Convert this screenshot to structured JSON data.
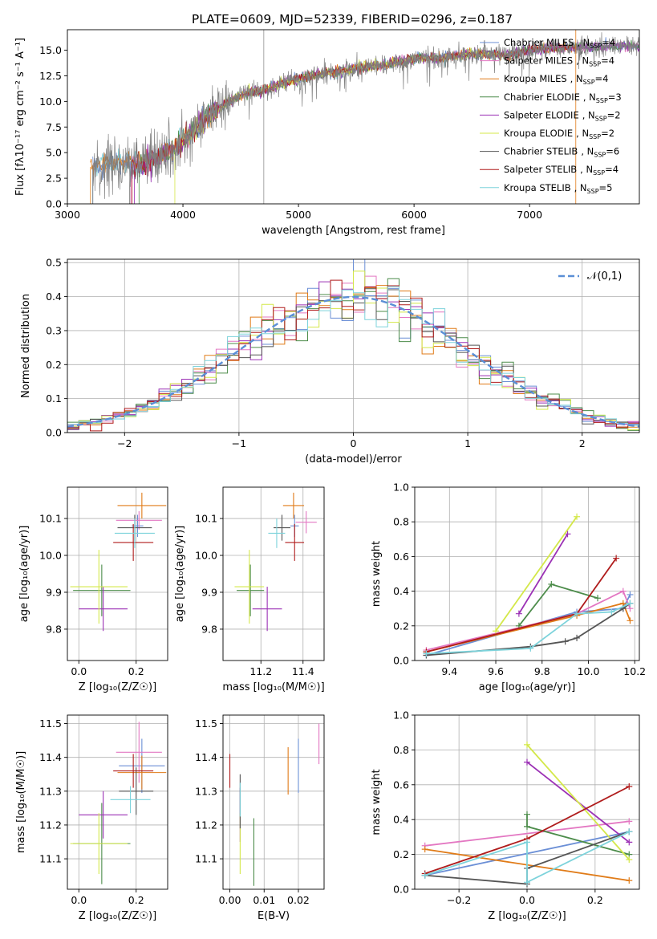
{
  "figure_title": "PLATE=0609, MJD=52339, FIBERID=0296, z=0.187",
  "colors": {
    "Chabrier MILES": "#6b8fd6",
    "Salpeter MILES": "#e377c2",
    "Kroupa MILES": "#e07b18",
    "Chabrier ELODIE": "#4c8c4a",
    "Salpeter ELODIE": "#9b30b5",
    "Kroupa ELODIE": "#d4e84a",
    "Chabrier STELIB": "#555555",
    "Salpeter STELIB": "#b01c1c",
    "Kroupa STELIB": "#7dd3db",
    "spectrum": "#808080",
    "normal": "#5b8fd6"
  },
  "chart_data": [
    {
      "id": "spectrum",
      "type": "line",
      "title": "PLATE=0609, MJD=52339, FIBERID=0296, z=0.187",
      "xlabel": "wavelength [Angstrom, rest frame]",
      "ylabel": "Flux [fλ10⁻¹⁷ erg cm⁻² s⁻¹ A⁻¹]",
      "xlim": [
        3000,
        7950
      ],
      "ylim": [
        0,
        17
      ],
      "xticks": [
        "3000",
        "4000",
        "5000",
        "6000",
        "7000"
      ],
      "yticks": [
        "0.0",
        "2.5",
        "5.0",
        "7.5",
        "10.0",
        "12.5",
        "15.0"
      ],
      "grid": false,
      "legend": "upper right",
      "data_x": [
        3220,
        3350,
        3500,
        3650,
        3800,
        3950,
        4100,
        4250,
        4400,
        4550,
        4700,
        4850,
        5000,
        5200,
        5400,
        5600,
        5800,
        6000,
        6200,
        6400,
        6600,
        6800,
        7000,
        7200,
        7400,
        7600,
        7800,
        7950
      ],
      "data_y": [
        3.6,
        3.9,
        4.0,
        3.7,
        4.8,
        5.5,
        7.2,
        8.8,
        10.0,
        10.8,
        11.0,
        11.8,
        12.2,
        12.7,
        13.0,
        13.4,
        13.7,
        14.2,
        14.2,
        14.5,
        14.7,
        14.5,
        15.0,
        15.2,
        15.3,
        15.3,
        15.4,
        15.4
      ],
      "series": [
        {
          "name": "Chabrier MILES",
          "nssp": "4"
        },
        {
          "name": "Salpeter MILES",
          "nssp": "4"
        },
        {
          "name": "Kroupa MILES",
          "nssp": "4"
        },
        {
          "name": "Chabrier ELODIE",
          "nssp": "3"
        },
        {
          "name": "Salpeter ELODIE",
          "nssp": "2"
        },
        {
          "name": "Kroupa ELODIE",
          "nssp": "2"
        },
        {
          "name": "Chabrier STELIB",
          "nssp": "6"
        },
        {
          "name": "Salpeter STELIB",
          "nssp": "4"
        },
        {
          "name": "Kroupa STELIB",
          "nssp": "5"
        }
      ]
    },
    {
      "id": "residuals",
      "type": "bar",
      "xlabel": "(data-model)/error",
      "ylabel": "Normed distribution",
      "xlim": [
        -2.5,
        2.5
      ],
      "ylim": [
        0,
        0.51
      ],
      "xticks": [
        "−2",
        "−1",
        "0",
        "1",
        "2"
      ],
      "yticks": [
        "0.0",
        "0.1",
        "0.2",
        "0.3",
        "0.4",
        "0.5"
      ],
      "grid": true,
      "legend_label": "𝒩(0,1)",
      "legend": "upper right",
      "bin_width": 0.1
    },
    {
      "id": "age-vs-z",
      "type": "scatter",
      "xlabel": "Z [log₁₀(Z/Z☉)]",
      "ylabel": "age [log₁₀(age/yr)]",
      "xlim": [
        -0.04,
        0.31
      ],
      "ylim": [
        9.715,
        10.185
      ],
      "xticks": [
        "0.0",
        "0.2"
      ],
      "yticks": [
        "9.8",
        "9.9",
        "10.0",
        "10.1"
      ],
      "grid": true,
      "points": [
        {
          "series": "Chabrier MILES",
          "x": 0.205,
          "y": 10.08,
          "xerr": 0.02,
          "yerr": 0.03
        },
        {
          "series": "Salpeter MILES",
          "x": 0.21,
          "y": 10.095,
          "xerr": 0.08,
          "yerr": 0.025
        },
        {
          "series": "Kroupa MILES",
          "x": 0.22,
          "y": 10.135,
          "xerr": 0.085,
          "yerr": 0.035
        },
        {
          "series": "Chabrier ELODIE",
          "x": 0.08,
          "y": 9.905,
          "xerr": 0.1,
          "yerr": 0.07
        },
        {
          "series": "Salpeter ELODIE",
          "x": 0.085,
          "y": 9.855,
          "xerr": 0.085,
          "yerr": 0.06
        },
        {
          "series": "Kroupa ELODIE",
          "x": 0.07,
          "y": 9.915,
          "xerr": 0.1,
          "yerr": 0.1
        },
        {
          "series": "Chabrier STELIB",
          "x": 0.195,
          "y": 10.075,
          "xerr": 0.06,
          "yerr": 0.035
        },
        {
          "series": "Salpeter STELIB",
          "x": 0.19,
          "y": 10.035,
          "xerr": 0.07,
          "yerr": 0.05
        },
        {
          "series": "Kroupa STELIB",
          "x": 0.195,
          "y": 10.06,
          "xerr": 0.07,
          "yerr": 0.04
        }
      ]
    },
    {
      "id": "age-vs-mass",
      "type": "scatter",
      "xlabel": "mass [log₁₀(M/M☉)]",
      "ylabel": "age [log₁₀(age/yr)]",
      "xlim": [
        11.02,
        11.5
      ],
      "ylim": [
        9.715,
        10.185
      ],
      "xticks": [
        "11.2",
        "11.4"
      ],
      "yticks": [
        "9.8",
        "9.9",
        "10.0",
        "10.1"
      ],
      "grid": true,
      "points": [
        {
          "series": "Chabrier MILES",
          "x": 11.36,
          "y": 10.08,
          "xerr": 0.02,
          "yerr": 0.03
        },
        {
          "series": "Salpeter MILES",
          "x": 11.415,
          "y": 10.09,
          "xerr": 0.05,
          "yerr": 0.03
        },
        {
          "series": "Kroupa MILES",
          "x": 11.355,
          "y": 10.135,
          "xerr": 0.05,
          "yerr": 0.035
        },
        {
          "series": "Chabrier ELODIE",
          "x": 11.15,
          "y": 9.905,
          "xerr": 0.065,
          "yerr": 0.07
        },
        {
          "series": "Salpeter ELODIE",
          "x": 11.23,
          "y": 9.855,
          "xerr": 0.07,
          "yerr": 0.06
        },
        {
          "series": "Kroupa ELODIE",
          "x": 11.145,
          "y": 9.915,
          "xerr": 0.07,
          "yerr": 0.1
        },
        {
          "series": "Chabrier STELIB",
          "x": 11.3,
          "y": 10.075,
          "xerr": 0.04,
          "yerr": 0.035
        },
        {
          "series": "Salpeter STELIB",
          "x": 11.36,
          "y": 10.035,
          "xerr": 0.045,
          "yerr": 0.05
        },
        {
          "series": "Kroupa STELIB",
          "x": 11.275,
          "y": 10.06,
          "xerr": 0.04,
          "yerr": 0.04
        }
      ]
    },
    {
      "id": "weight-vs-age",
      "type": "line",
      "xlabel": "age [log₁₀(age/yr)]",
      "ylabel": "mass weight",
      "xlim": [
        9.25,
        10.22
      ],
      "ylim": [
        0,
        1
      ],
      "xticks": [
        "9.4",
        "9.6",
        "9.8",
        "10.0",
        "10.2"
      ],
      "yticks": [
        "0.0",
        "0.2",
        "0.4",
        "0.6",
        "0.8",
        "1.0"
      ],
      "grid": true,
      "lines": [
        {
          "series": "Chabrier MILES",
          "x": [
            9.3,
            9.95,
            10.15,
            10.18
          ],
          "y": [
            0.03,
            0.28,
            0.3,
            0.38
          ]
        },
        {
          "series": "Salpeter MILES",
          "x": [
            9.3,
            9.95,
            10.15,
            10.18
          ],
          "y": [
            0.06,
            0.27,
            0.4,
            0.3
          ]
        },
        {
          "series": "Kroupa MILES",
          "x": [
            9.3,
            9.95,
            10.15,
            10.18
          ],
          "y": [
            0.05,
            0.26,
            0.33,
            0.23
          ]
        },
        {
          "series": "Chabrier ELODIE",
          "x": [
            9.7,
            9.84,
            10.04
          ],
          "y": [
            0.2,
            0.44,
            0.36
          ]
        },
        {
          "series": "Salpeter ELODIE",
          "x": [
            9.7,
            9.91
          ],
          "y": [
            0.27,
            0.73
          ]
        },
        {
          "series": "Kroupa ELODIE",
          "x": [
            9.6,
            9.95
          ],
          "y": [
            0.17,
            0.83
          ]
        },
        {
          "series": "Chabrier STELIB",
          "x": [
            9.3,
            9.75,
            9.9,
            9.95,
            10.15,
            10.18
          ],
          "y": [
            0.03,
            0.08,
            0.11,
            0.13,
            0.3,
            0.33
          ]
        },
        {
          "series": "Salpeter STELIB",
          "x": [
            9.3,
            9.95,
            10.12
          ],
          "y": [
            0.05,
            0.27,
            0.59
          ]
        },
        {
          "series": "Kroupa STELIB",
          "x": [
            9.3,
            9.75,
            9.95,
            10.1,
            10.18
          ],
          "y": [
            0.04,
            0.07,
            0.27,
            0.28,
            0.33
          ]
        }
      ]
    },
    {
      "id": "mass-vs-z",
      "type": "scatter",
      "xlabel": "Z [log₁₀(Z/Z☉)]",
      "ylabel": "mass [log₁₀(M/M☉)]",
      "xlim": [
        -0.04,
        0.31
      ],
      "ylim": [
        11.01,
        11.525
      ],
      "xticks": [
        "0.0",
        "0.2"
      ],
      "yticks": [
        "11.1",
        "11.2",
        "11.3",
        "11.4",
        "11.5"
      ],
      "grid": true,
      "points": [
        {
          "series": "Chabrier MILES",
          "x": 0.22,
          "y": 11.375,
          "xerr": 0.08,
          "yerr": 0.08
        },
        {
          "series": "Salpeter MILES",
          "x": 0.21,
          "y": 11.415,
          "xerr": 0.08,
          "yerr": 0.09
        },
        {
          "series": "Kroupa MILES",
          "x": 0.22,
          "y": 11.355,
          "xerr": 0.085,
          "yerr": 0.05
        },
        {
          "series": "Chabrier ELODIE",
          "x": 0.08,
          "y": 11.145,
          "xerr": 0.1,
          "yerr": 0.12
        },
        {
          "series": "Salpeter ELODIE",
          "x": 0.085,
          "y": 11.23,
          "xerr": 0.085,
          "yerr": 0.07
        },
        {
          "series": "Kroupa ELODIE",
          "x": 0.07,
          "y": 11.145,
          "xerr": 0.1,
          "yerr": 0.09
        },
        {
          "series": "Chabrier STELIB",
          "x": 0.2,
          "y": 11.3,
          "xerr": 0.06,
          "yerr": 0.07
        },
        {
          "series": "Salpeter STELIB",
          "x": 0.19,
          "y": 11.36,
          "xerr": 0.07,
          "yerr": 0.05
        },
        {
          "series": "Kroupa STELIB",
          "x": 0.18,
          "y": 11.275,
          "xerr": 0.07,
          "yerr": 0.04
        }
      ]
    },
    {
      "id": "mass-vs-ebv",
      "type": "scatter",
      "xlabel": "E(B-V)",
      "ylabel": "",
      "xlim": [
        -0.002,
        0.0275
      ],
      "ylim": [
        11.01,
        11.525
      ],
      "xticks": [
        "0.00",
        "0.01",
        "0.02"
      ],
      "yticks": [
        "11.1",
        "11.2",
        "11.3",
        "11.4",
        "11.5"
      ],
      "grid": true,
      "points": [
        {
          "series": "Chabrier MILES",
          "x": 0.02,
          "y": 11.375,
          "yerr": 0.08
        },
        {
          "series": "Salpeter MILES",
          "x": 0.026,
          "y": 11.44,
          "yerr": 0.06
        },
        {
          "series": "Kroupa MILES",
          "x": 0.017,
          "y": 11.36,
          "yerr": 0.07
        },
        {
          "series": "Chabrier ELODIE",
          "x": 0.007,
          "y": 11.12,
          "yerr": 0.1
        },
        {
          "series": "Salpeter ELODIE",
          "x": 0.003,
          "y": 11.23,
          "yerr": 0.08
        },
        {
          "series": "Kroupa ELODIE",
          "x": 0.003,
          "y": 11.145,
          "yerr": 0.09
        },
        {
          "series": "Chabrier STELIB",
          "x": 0.003,
          "y": 11.27,
          "yerr": 0.08
        },
        {
          "series": "Salpeter STELIB",
          "x": 0.0,
          "y": 11.36,
          "yerr": 0.05
        },
        {
          "series": "Kroupa STELIB",
          "x": 0.003,
          "y": 11.275,
          "yerr": 0.05
        }
      ]
    },
    {
      "id": "weight-vs-z",
      "type": "line",
      "xlabel": "Z [log₁₀(Z/Z☉)]",
      "ylabel": "mass weight",
      "xlim": [
        -0.33,
        0.33
      ],
      "ylim": [
        0,
        1
      ],
      "xticks": [
        "−0.2",
        "0.0",
        "0.2"
      ],
      "yticks": [
        "0.0",
        "0.2",
        "0.4",
        "0.6",
        "0.8",
        "1.0"
      ],
      "grid": true,
      "lines": [
        {
          "series": "Chabrier MILES",
          "x": [
            -0.3,
            0.3
          ],
          "y": [
            0.08,
            0.33
          ]
        },
        {
          "series": "Salpeter MILES",
          "x": [
            -0.3,
            0.3
          ],
          "y": [
            0.25,
            0.39
          ]
        },
        {
          "series": "Kroupa MILES",
          "x": [
            -0.3,
            0.3
          ],
          "y": [
            0.23,
            0.05
          ]
        },
        {
          "series": "Chabrier ELODIE",
          "x": [
            0.0,
            0.0,
            0.3
          ],
          "y": [
            0.43,
            0.36,
            0.2
          ]
        },
        {
          "series": "Salpeter ELODIE",
          "x": [
            0.0,
            0.3
          ],
          "y": [
            0.73,
            0.27
          ]
        },
        {
          "series": "Kroupa ELODIE",
          "x": [
            0.0,
            0.3
          ],
          "y": [
            0.83,
            0.17
          ]
        },
        {
          "series": "Chabrier STELIB",
          "x": [
            -0.3,
            0.0,
            0.0,
            0.3
          ],
          "y": [
            0.08,
            0.03,
            0.12,
            0.33
          ]
        },
        {
          "series": "Salpeter STELIB",
          "x": [
            -0.3,
            0.0,
            0.3
          ],
          "y": [
            0.09,
            0.29,
            0.59
          ]
        },
        {
          "series": "Kroupa STELIB",
          "x": [
            -0.3,
            0.0,
            0.0,
            0.3
          ],
          "y": [
            0.08,
            0.27,
            0.04,
            0.33
          ]
        }
      ]
    }
  ]
}
